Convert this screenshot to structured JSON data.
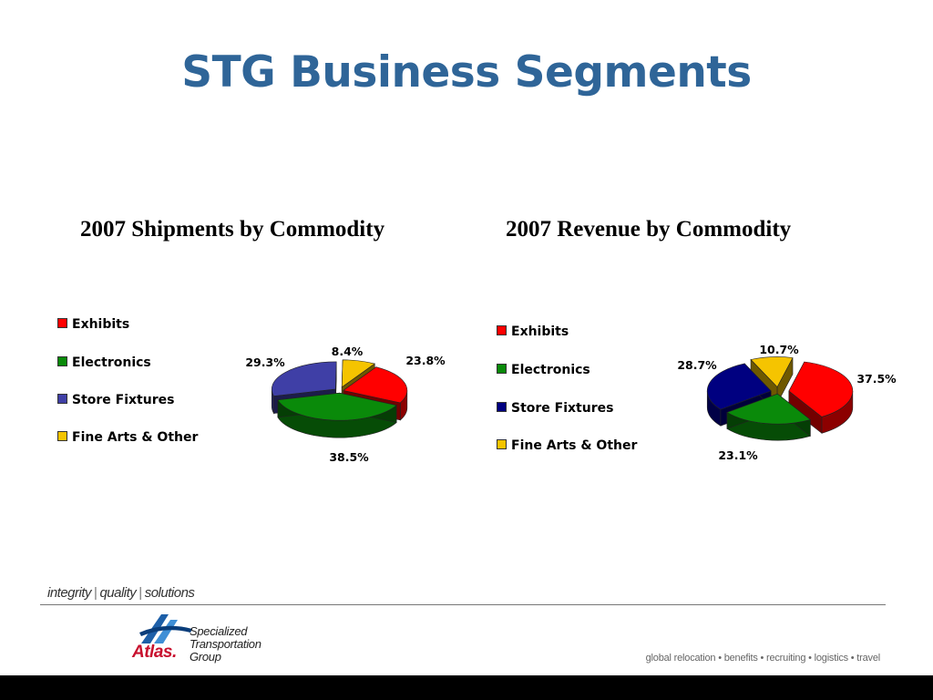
{
  "slide": {
    "title": "STG Business Segments",
    "tagline": [
      "integrity",
      "quality",
      "solutions"
    ],
    "logo": {
      "brand": "Atlas.",
      "sub_lines": [
        "Specialized",
        "Transportation",
        "Group"
      ]
    },
    "services": "global relocation • benefits • recruiting • logistics • travel"
  },
  "chart_data": [
    {
      "type": "pie",
      "title": "2007 Shipments by Commodity",
      "categories": [
        "Exhibits",
        "Electronics",
        "Store Fixtures",
        "Fine Arts & Other"
      ],
      "values": [
        23.8,
        38.5,
        29.3,
        8.4
      ],
      "value_labels": [
        "23.8%",
        "38.5%",
        "29.3%",
        "8.4%"
      ],
      "colors": [
        "#ff0000",
        "#0a8a0a",
        "#3f3fa6",
        "#f5c400"
      ],
      "legend_placement": "left",
      "three_d": true
    },
    {
      "type": "pie",
      "title": "2007 Revenue by Commodity",
      "categories": [
        "Exhibits",
        "Electronics",
        "Store Fixtures",
        "Fine Arts & Other"
      ],
      "values": [
        37.5,
        23.1,
        28.7,
        10.7
      ],
      "value_labels": [
        "37.5%",
        "23.1%",
        "28.7%",
        "10.7%"
      ],
      "colors": [
        "#ff0000",
        "#0a8a0a",
        "#000080",
        "#f5c400"
      ],
      "legend_placement": "left",
      "three_d": true
    }
  ]
}
